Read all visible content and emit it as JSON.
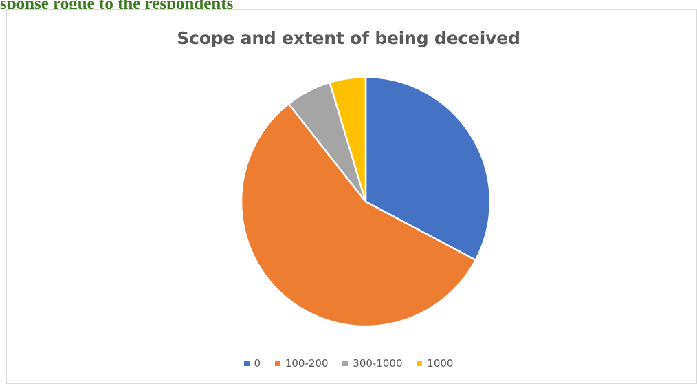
{
  "doc_heading": "sponse rogue to the respondents",
  "chart_data": {
    "type": "pie",
    "title": "Scope and extent of being deceived",
    "categories": [
      "0",
      "100-200",
      "300-1000",
      "1000"
    ],
    "values": [
      33,
      57,
      6,
      4.7
    ],
    "colors": [
      "#4472c4",
      "#ed7d31",
      "#a5a5a5",
      "#ffc000"
    ],
    "legend_position": "bottom"
  }
}
